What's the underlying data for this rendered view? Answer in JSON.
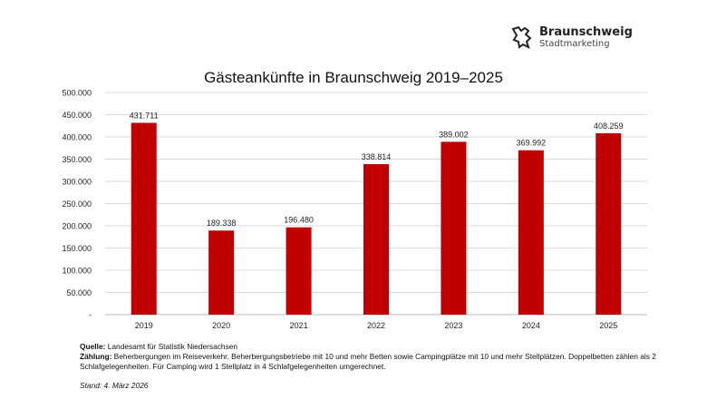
{
  "logo": {
    "line1": "Braunschweig",
    "line2": "Stadtmarketing"
  },
  "chart_data": {
    "type": "bar",
    "title": "Gästeankünfte in Braunschweig 2019–2025",
    "categories": [
      "2019",
      "2020",
      "2021",
      "2022",
      "2023",
      "2024",
      "2025"
    ],
    "values": [
      431711,
      189338,
      196480,
      338814,
      389002,
      369992,
      408259
    ],
    "data_labels": [
      "431.711",
      "189.338",
      "196.480",
      "338.814",
      "389.002",
      "369.992",
      "408.259"
    ],
    "yticks": [
      "-",
      "50.000",
      "100.000",
      "150.000",
      "200.000",
      "250.000",
      "300.000",
      "350.000",
      "400.000",
      "450.000",
      "500.000"
    ],
    "ylim": [
      0,
      500000
    ],
    "grid": true,
    "bar_color": "#c00000",
    "xlabel": "",
    "ylabel": ""
  },
  "notes": {
    "source_label": "Quelle:",
    "source_text": " Landesamt für Statistik Niedersachsen",
    "count_label": "Zählung:",
    "count_text": " Beherbergungen im Reiseverkehr. Beherbergungsbetriebe mit 10 und mehr Betten sowie Campingplätze mit 10 und mehr Stellplätzen. Doppelbetten zählen als 2 Schlafgelegenheiten.  Für Camping wird 1 Stellplatz in 4 Schlafgelegenheiten umgerechnet.",
    "stand": "Stand: 4. März 2026"
  }
}
